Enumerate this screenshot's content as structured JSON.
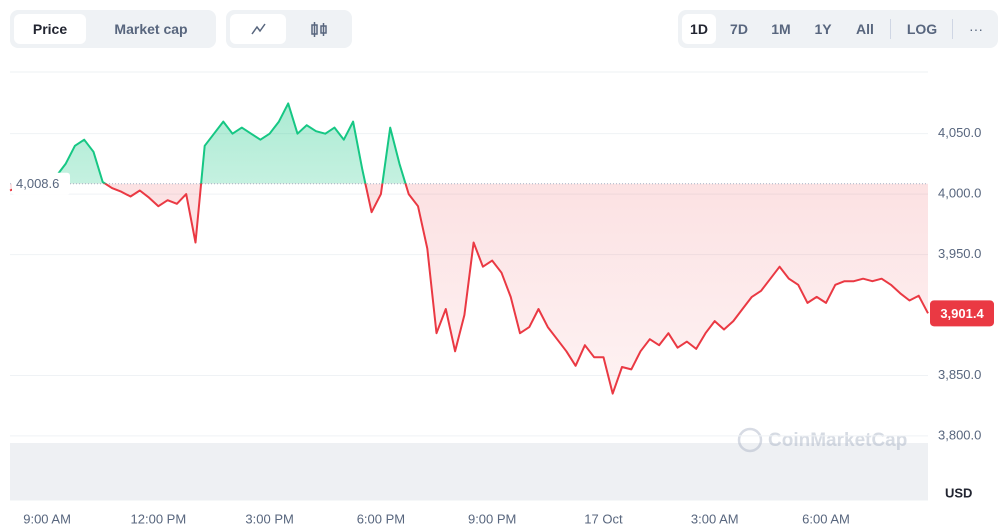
{
  "toolbar": {
    "views": [
      "Price",
      "Market cap"
    ],
    "ranges": [
      "1D",
      "7D",
      "1M",
      "1Y",
      "All"
    ],
    "scale": "LOG",
    "more": "···"
  },
  "chart_data": {
    "type": "line",
    "x": [
      8,
      8.25,
      8.5,
      8.75,
      9,
      9.25,
      9.5,
      9.75,
      10,
      10.25,
      10.5,
      10.75,
      11,
      11.25,
      11.5,
      11.75,
      12,
      12.25,
      12.5,
      12.75,
      13,
      13.25,
      13.5,
      13.75,
      14,
      14.25,
      14.5,
      14.75,
      15,
      15.25,
      15.5,
      15.75,
      16,
      16.25,
      16.5,
      16.75,
      17,
      17.25,
      17.5,
      17.75,
      18,
      18.25,
      18.5,
      18.75,
      19,
      19.25,
      19.5,
      19.75,
      20,
      20.25,
      20.5,
      20.75,
      21,
      21.25,
      21.5,
      21.75,
      22,
      22.25,
      22.5,
      22.75,
      23,
      23.25,
      23.5,
      23.75,
      24,
      24.25,
      24.5,
      24.75,
      25,
      25.25,
      25.5,
      25.75,
      26,
      26.25,
      26.5,
      26.75,
      27,
      27.25,
      27.5,
      27.75,
      28,
      28.25,
      28.5,
      28.75,
      29,
      29.25,
      29.5,
      29.75,
      30,
      30.25,
      30.5,
      30.75,
      31,
      31.25,
      31.5,
      31.75,
      32,
      32.25,
      32.5,
      32.75
    ],
    "values": [
      4003,
      4006,
      4015,
      4005,
      4010,
      4015,
      4025,
      4040,
      4045,
      4035,
      4010,
      4005,
      4002,
      3998,
      4003,
      3997,
      3990,
      3995,
      3992,
      4000,
      3960,
      4040,
      4050,
      4060,
      4050,
      4055,
      4050,
      4045,
      4050,
      4060,
      4075,
      4050,
      4057,
      4052,
      4050,
      4055,
      4045,
      4060,
      4020,
      3985,
      4000,
      4055,
      4025,
      4000,
      3990,
      3955,
      3885,
      3905,
      3870,
      3900,
      3960,
      3940,
      3945,
      3935,
      3915,
      3885,
      3890,
      3905,
      3890,
      3880,
      3870,
      3858,
      3875,
      3865,
      3865,
      3835,
      3857,
      3855,
      3870,
      3880,
      3875,
      3885,
      3873,
      3878,
      3872,
      3885,
      3895,
      3888,
      3895,
      3905,
      3915,
      3920,
      3930,
      3940,
      3930,
      3925,
      3910,
      3915,
      3910,
      3925,
      3928,
      3928,
      3930,
      3928,
      3930,
      3925,
      3918,
      3912,
      3916,
      3901.4
    ],
    "colors": {
      "up": "#16c784",
      "down": "#ea3943"
    },
    "baseline": {
      "value": 4008.6,
      "label": "4,008.6"
    },
    "last_price_label": "3,901.4",
    "xlim": [
      8,
      32.75
    ],
    "xticks": [
      {
        "value": 9,
        "label": "9:00 AM"
      },
      {
        "value": 12,
        "label": "12:00 PM"
      },
      {
        "value": 15,
        "label": "3:00 PM"
      },
      {
        "value": 18,
        "label": "6:00 PM"
      },
      {
        "value": 21,
        "label": "9:00 PM"
      },
      {
        "value": 24,
        "label": "17 Oct"
      },
      {
        "value": 27,
        "label": "3:00 AM"
      },
      {
        "value": 30,
        "label": "6:00 AM"
      }
    ],
    "ylim": [
      3747,
      4101
    ],
    "yticks": [
      {
        "value": 3800,
        "label": "3,800.0"
      },
      {
        "value": 3850,
        "label": "3,850.0"
      },
      {
        "value": 3950,
        "label": "3,950.0"
      },
      {
        "value": 4000,
        "label": "4,000.0"
      },
      {
        "value": 4050,
        "label": "4,050.0"
      }
    ],
    "grid": true,
    "y_unit": "USD",
    "watermark": "CoinMarketCap"
  }
}
